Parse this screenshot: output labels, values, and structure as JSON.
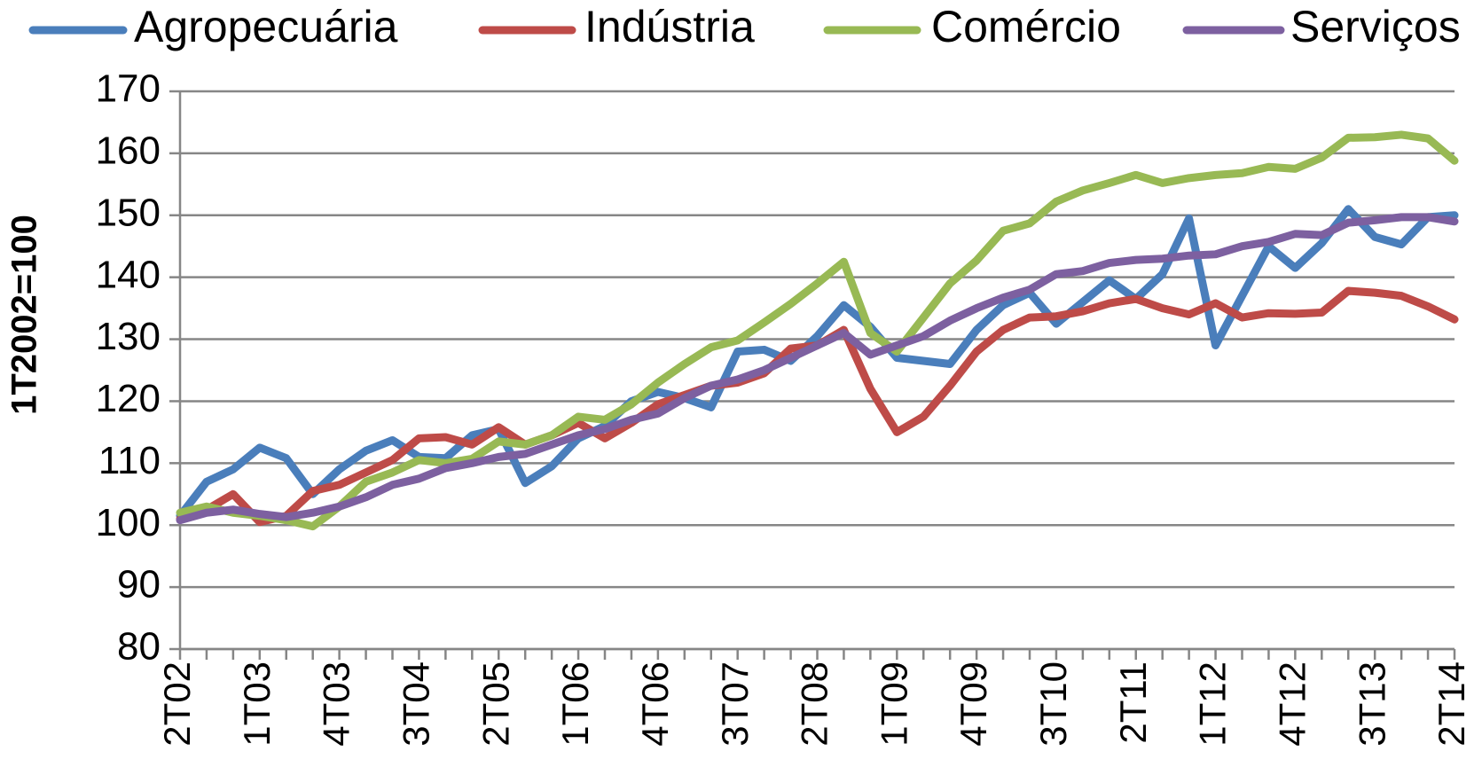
{
  "chart_data": {
    "type": "line",
    "ylabel": "1T2002=100",
    "categories": [
      "2T02",
      null,
      null,
      "1T03",
      null,
      null,
      "4T03",
      null,
      null,
      "3T04",
      null,
      null,
      "2T05",
      null,
      null,
      "1T06",
      null,
      null,
      "4T06",
      null,
      null,
      "3T07",
      null,
      null,
      "2T08",
      null,
      null,
      "1T09",
      null,
      null,
      "4T09",
      null,
      null,
      "3T10",
      null,
      null,
      "2T11",
      null,
      null,
      "1T12",
      null,
      null,
      "4T12",
      null,
      null,
      "3T13",
      null,
      null,
      "2T14"
    ],
    "series": [
      {
        "name": "Agropecuária",
        "color": "#4a7ebb",
        "values": [
          101.5,
          107,
          109,
          112.5,
          110.8,
          105,
          109,
          112,
          113.7,
          111,
          110.8,
          114.5,
          115.5,
          106.8,
          109.5,
          114,
          116,
          120,
          121.5,
          120.5,
          119,
          128,
          128.3,
          126.5,
          130.5,
          135.5,
          132,
          127,
          126.5,
          126,
          131.5,
          135.5,
          137.5,
          132.5,
          136,
          139.5,
          136.5,
          140.5,
          149.5,
          129,
          137,
          145,
          141.5,
          145.5,
          151,
          146.5,
          145.3,
          149.7,
          150
        ]
      },
      {
        "name": "Indústria",
        "color": "#be4b48",
        "values": [
          101,
          102.5,
          105,
          100.5,
          101.5,
          105.5,
          106.5,
          108.5,
          110.5,
          114,
          114.2,
          113,
          115.8,
          113,
          114.5,
          116.5,
          114,
          116.5,
          119.5,
          121,
          122.5,
          123,
          124.5,
          128.5,
          129,
          131.5,
          122,
          115,
          117.5,
          122.5,
          128,
          131.5,
          133.5,
          133.7,
          134.5,
          135.8,
          136.5,
          135,
          134,
          135.8,
          133.5,
          134.2,
          134.1,
          134.3,
          137.8,
          137.5,
          137,
          135.3,
          133.2
        ]
      },
      {
        "name": "Comércio",
        "color": "#98b954",
        "values": [
          102,
          103,
          102,
          101.5,
          100.8,
          99.8,
          103,
          107,
          108.5,
          110.5,
          110,
          110.7,
          113.5,
          113,
          114.5,
          117.5,
          117,
          119.5,
          123,
          126,
          128.7,
          129.8,
          132.7,
          135.7,
          139,
          142.5,
          131,
          128,
          133.5,
          139,
          142.7,
          147.5,
          148.7,
          152.2,
          154,
          155.2,
          156.5,
          155.2,
          156,
          156.5,
          156.8,
          157.8,
          157.5,
          159.3,
          162.5,
          162.6,
          163,
          162.4,
          158.8
        ]
      },
      {
        "name": "Serviços",
        "color": "#7d60a0",
        "values": [
          100.8,
          102,
          102.5,
          101.8,
          101.3,
          102,
          103,
          104.5,
          106.5,
          107.5,
          109.2,
          110,
          111,
          111.5,
          113,
          114.5,
          115.5,
          117,
          118,
          120.5,
          122.5,
          123.5,
          125,
          127,
          129,
          131,
          127.5,
          129,
          130.5,
          133,
          135,
          136.7,
          138,
          140.5,
          141,
          142.3,
          142.8,
          143,
          143.5,
          143.7,
          145,
          145.7,
          147,
          146.8,
          148.8,
          149.2,
          149.7,
          149.7,
          149
        ]
      }
    ],
    "ylim": [
      80,
      170
    ],
    "yticks": [
      80,
      90,
      100,
      110,
      120,
      130,
      140,
      150,
      160,
      170
    ],
    "grid": true
  }
}
